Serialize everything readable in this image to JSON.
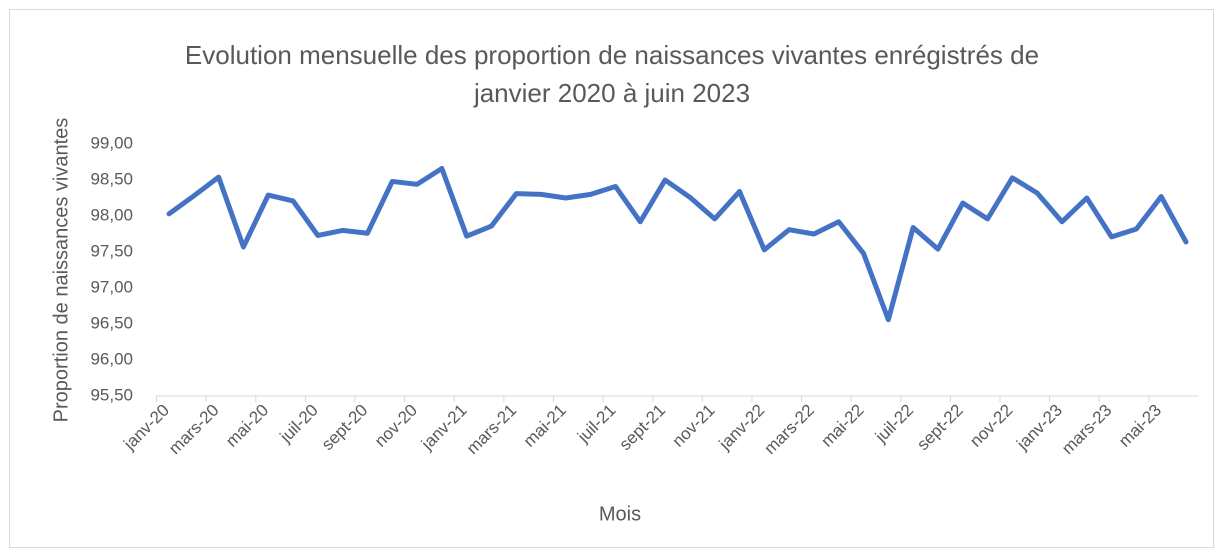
{
  "chart_data": {
    "type": "line",
    "title": [
      "Evolution mensuelle des proportion de naissances vivantes enrégistrés de",
      "janvier 2020 à juin 2023"
    ],
    "x_label": "Mois",
    "y_label": "Proportion de naissances vivantes",
    "categories": [
      "janv-20",
      null,
      "mars-20",
      null,
      "mai-20",
      null,
      "juil-20",
      null,
      "sept-20",
      null,
      "nov-20",
      null,
      "janv-21",
      null,
      "mars-21",
      null,
      "mai-21",
      null,
      "juil-21",
      null,
      "sept-21",
      null,
      "nov-21",
      null,
      "janv-22",
      null,
      "mars-22",
      null,
      "mai-22",
      null,
      "juil-22",
      null,
      "sept-22",
      null,
      "nov-22",
      null,
      "janv-23",
      null,
      "mars-23",
      null,
      "mai-23",
      null
    ],
    "values": [
      98.03,
      98.28,
      98.54,
      97.57,
      98.29,
      98.21,
      97.73,
      97.8,
      97.76,
      98.48,
      98.44,
      98.66,
      97.72,
      97.86,
      98.31,
      98.3,
      98.25,
      98.3,
      98.41,
      97.92,
      98.5,
      98.26,
      97.96,
      98.34,
      97.53,
      97.81,
      97.75,
      97.92,
      97.48,
      96.56,
      97.84,
      97.54,
      98.18,
      97.96,
      98.53,
      98.32,
      97.92,
      98.25,
      97.71,
      97.82,
      98.27,
      97.64
    ],
    "color": "#4472c4",
    "ylim": [
      95.5,
      99
    ],
    "yticks": [
      {
        "value": 95.5,
        "label": "95,50"
      },
      {
        "value": 96,
        "label": "96,00"
      },
      {
        "value": 96.5,
        "label": "96,50"
      },
      {
        "value": 97,
        "label": "97,00"
      },
      {
        "value": 97.5,
        "label": "97,50"
      },
      {
        "value": 98,
        "label": "98,00"
      },
      {
        "value": 98.5,
        "label": "98,50"
      },
      {
        "value": 99,
        "label": "99,00"
      }
    ],
    "grid": false
  }
}
